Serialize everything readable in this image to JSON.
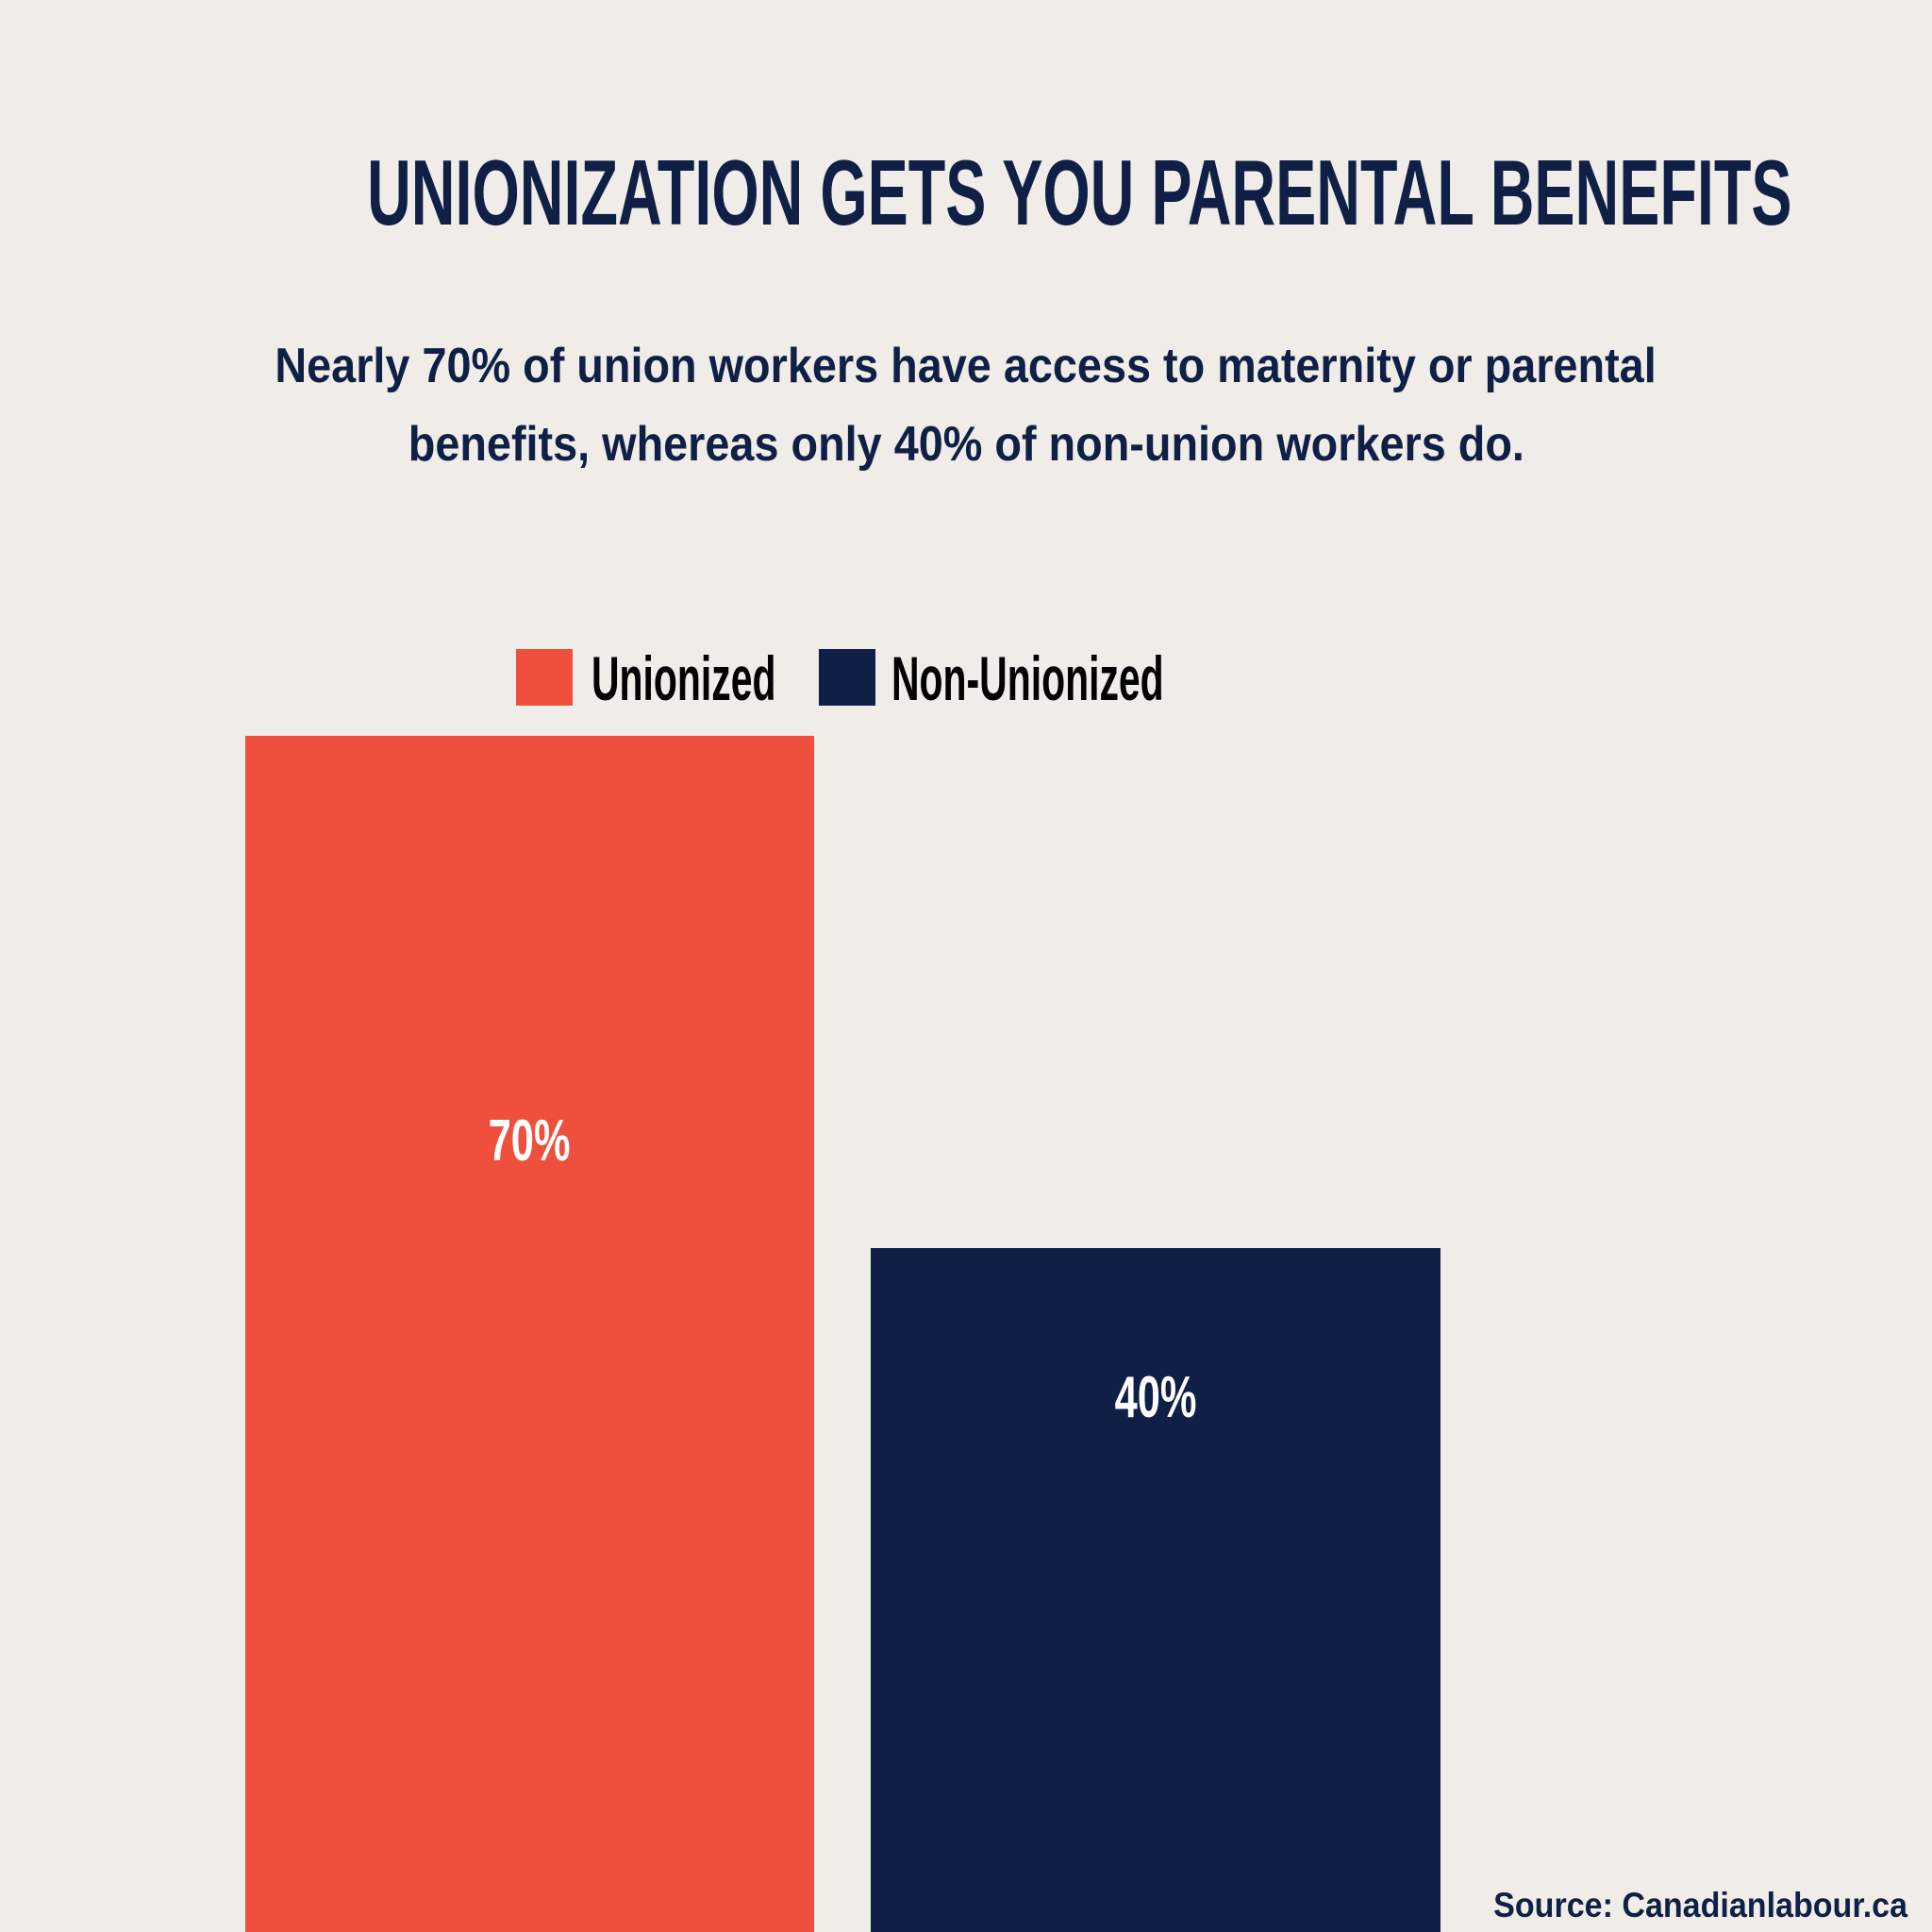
{
  "title": "UNIONIZATION GETS YOU PARENTAL BENEFITS",
  "subtitle": {
    "line1": "Nearly 70% of union workers have access to maternity or parental",
    "line2": "benefits, whereas only 40% of non-union workers do."
  },
  "source": "Source: Canadianlabour.ca",
  "chart_data": {
    "type": "bar",
    "title": "UNIONIZATION GETS YOU PARENTAL BENEFITS",
    "categories": [
      "Unionized",
      "Non-Unionized"
    ],
    "values": [
      70,
      40
    ],
    "data_labels": [
      "70%",
      "40%"
    ],
    "colors": [
      "#ef503e",
      "#0f1f45"
    ],
    "legend": [
      "Unionized",
      "Non-Unionized"
    ],
    "legend_position": "top",
    "xlabel": "",
    "ylabel": "",
    "grid": false
  }
}
